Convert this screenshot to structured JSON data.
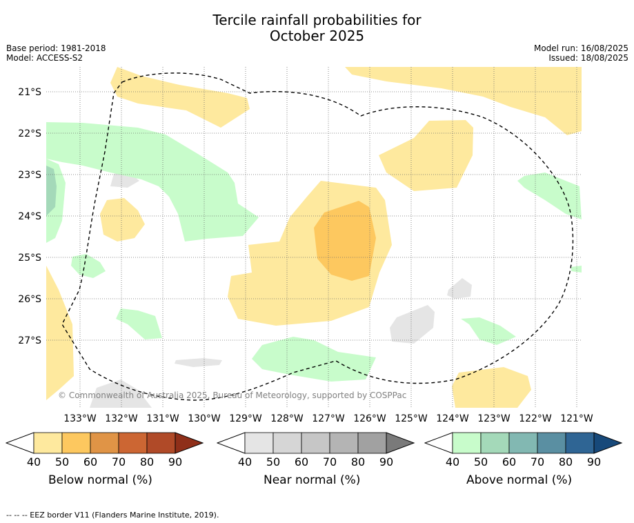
{
  "header": {
    "title_line1": "Tercile rainfall probabilities for",
    "title_line2": "October 2025",
    "base_period": "Base period: 1981-2018",
    "model": "Model: ACCESS-S2",
    "model_run": "Model run: 16/08/2025",
    "issued": "Issued: 18/08/2025"
  },
  "map": {
    "lat_labels": [
      "21°S",
      "22°S",
      "23°S",
      "24°S",
      "25°S",
      "26°S",
      "27°S"
    ],
    "lon_labels": [
      "133°W",
      "132°W",
      "131°W",
      "130°W",
      "129°W",
      "128°W",
      "127°W",
      "126°W",
      "125°W",
      "124°W",
      "123°W",
      "122°W",
      "121°W"
    ],
    "copyright": "© Commonwealth of Australia 2025, Bureau of Meteorology, supported by COSPPac"
  },
  "colorbars": [
    {
      "label": "Below normal (%)",
      "ticks": [
        "40",
        "50",
        "60",
        "70",
        "80",
        "90"
      ],
      "colors": [
        "#fee99e",
        "#fdc85f",
        "#e09446",
        "#cc6633",
        "#b04a28",
        "#8f2f19"
      ]
    },
    {
      "label": "Near normal (%)",
      "ticks": [
        "40",
        "50",
        "60",
        "70",
        "80",
        "90"
      ],
      "colors": [
        "#e5e5e5",
        "#d6d6d6",
        "#c6c6c6",
        "#b4b4b4",
        "#a1a1a1",
        "#7a7a7a"
      ]
    },
    {
      "label": "Above normal (%)",
      "ticks": [
        "40",
        "50",
        "60",
        "70",
        "80",
        "90"
      ],
      "colors": [
        "#c8fccb",
        "#a4d9b9",
        "#82b8b2",
        "#5a8fa2",
        "#2f6594",
        "#17497a"
      ]
    }
  ],
  "footnote": "--  --  -- EEZ border V11 (Flanders Marine Institute, 2019)."
}
